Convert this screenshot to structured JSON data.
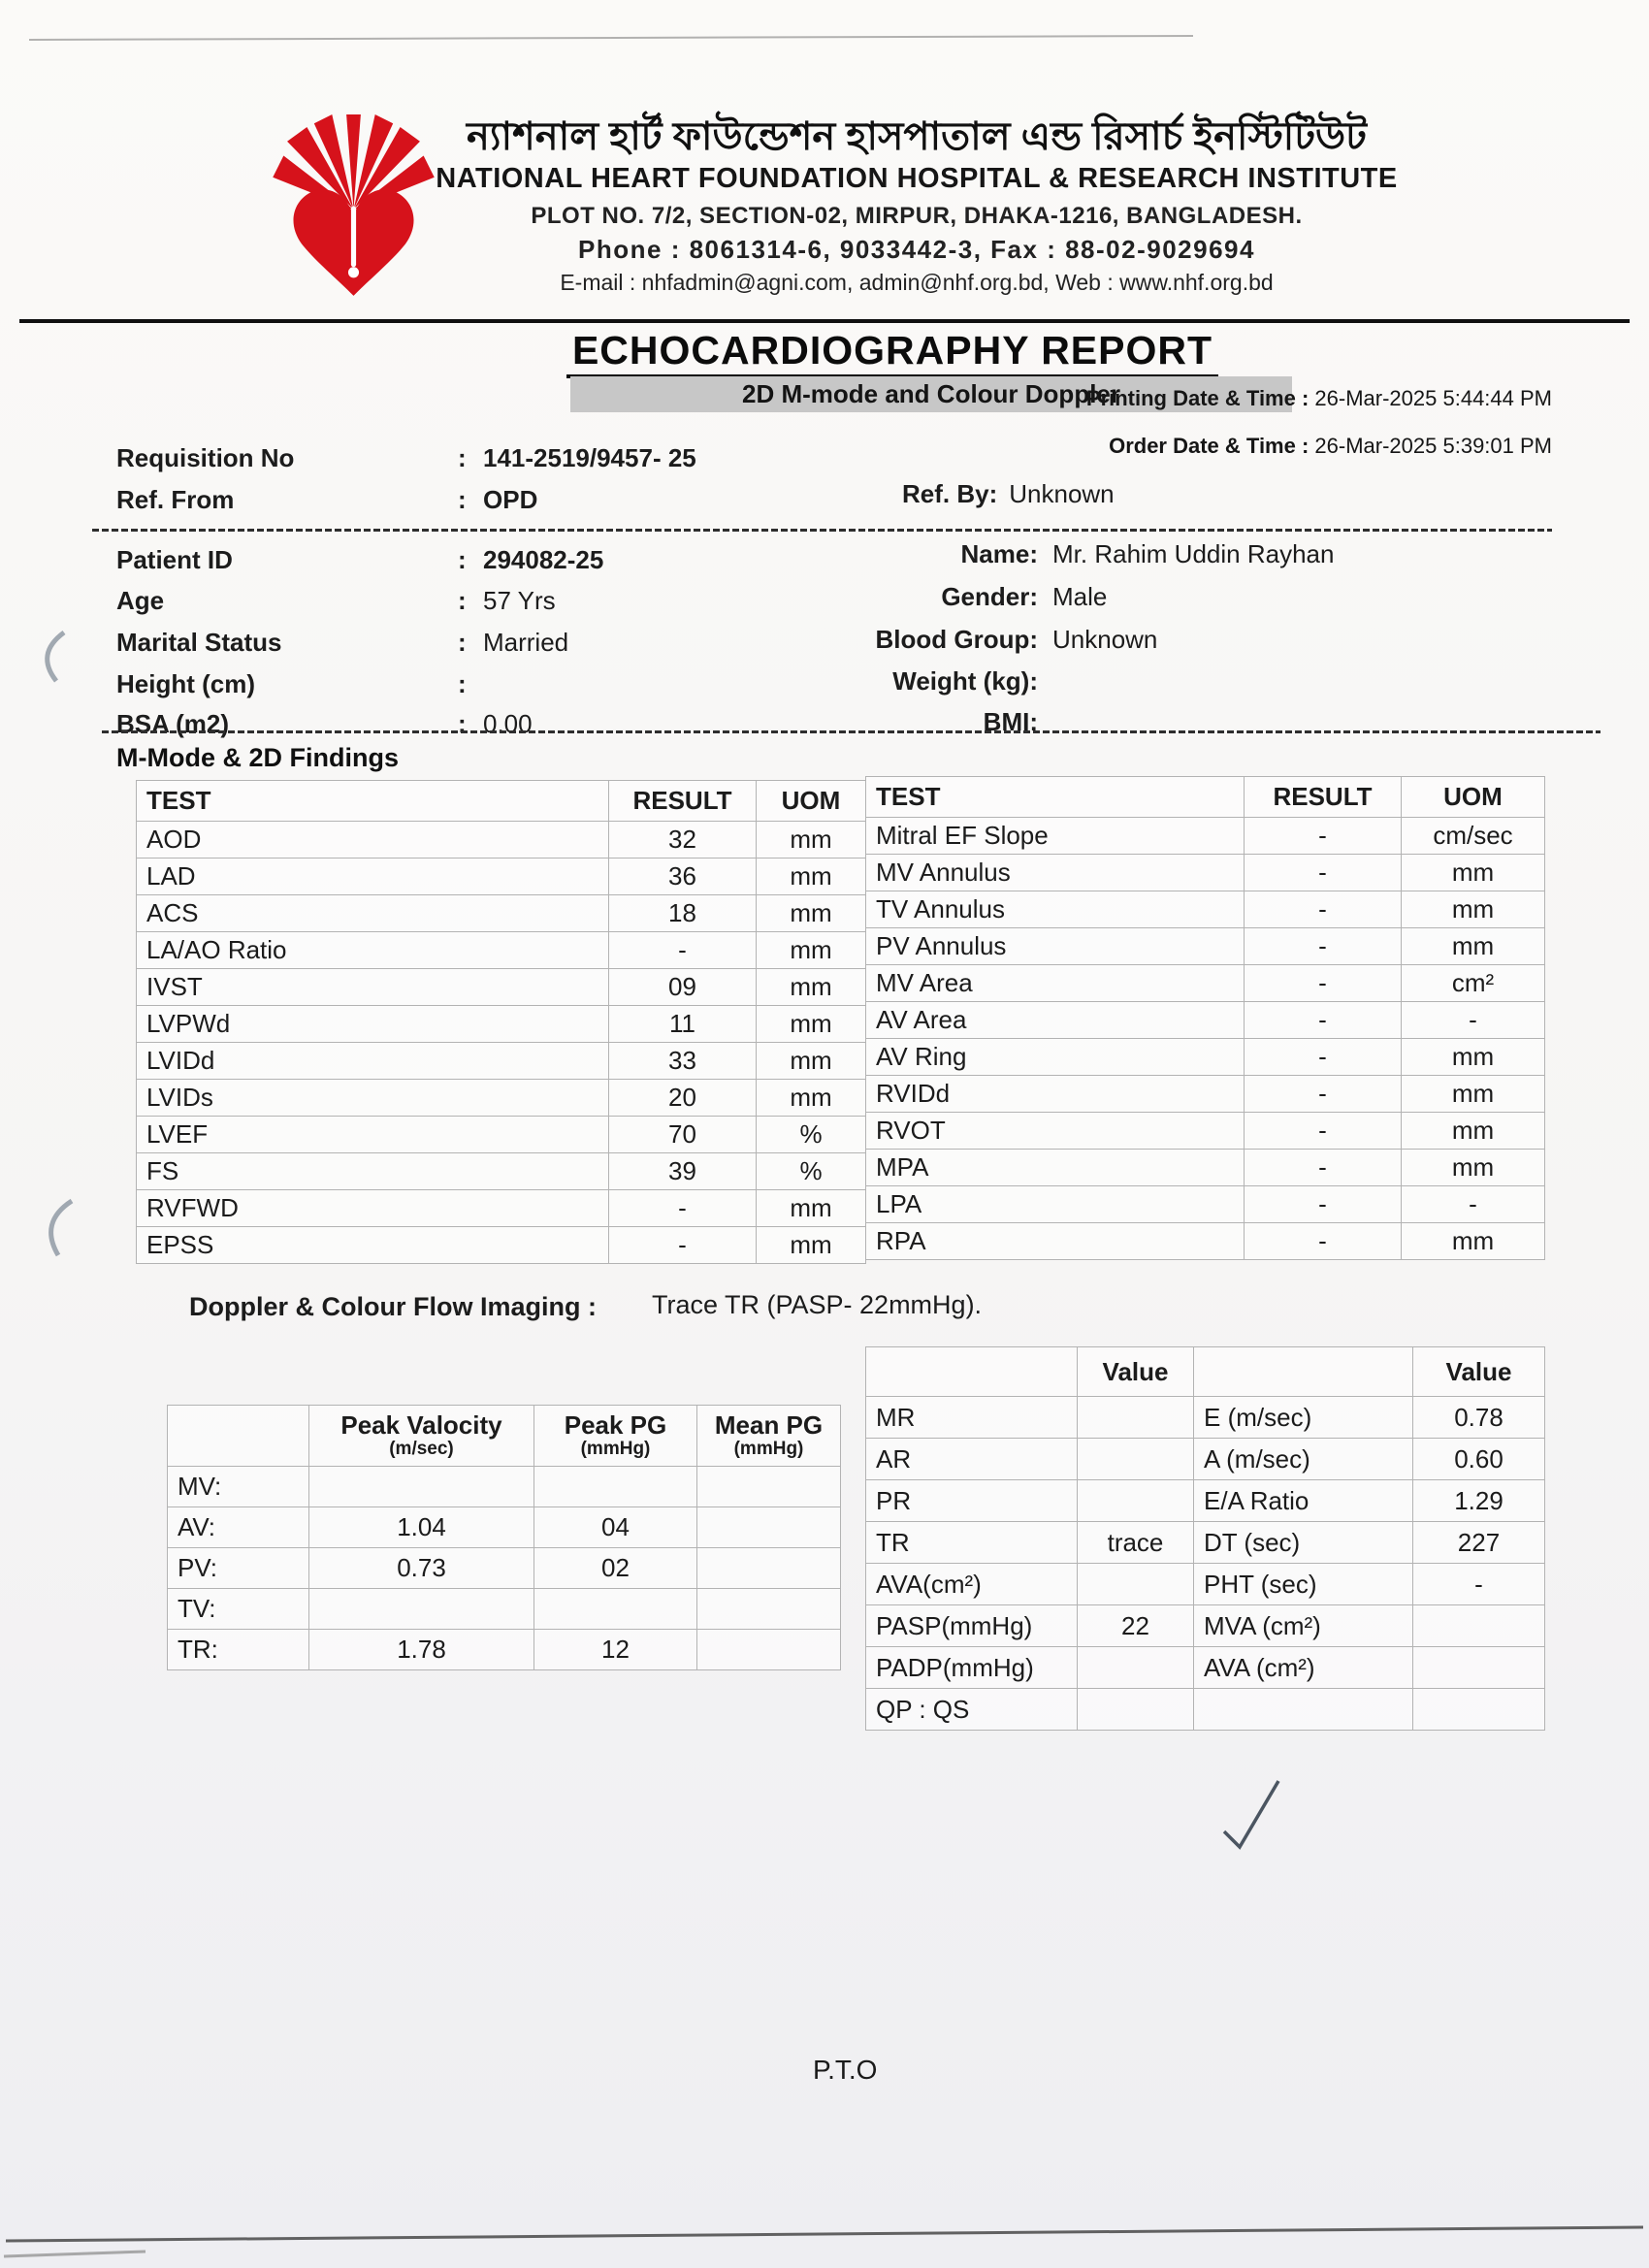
{
  "header": {
    "name_bn": "ন্যাশনাল হার্ট ফাউন্ডেশন হাসপাতাল এন্ড রিসার্চ ইনস্টিটিউট",
    "name_en": "NATIONAL HEART FOUNDATION HOSPITAL & RESEARCH INSTITUTE",
    "address": "PLOT NO. 7/2, SECTION-02, MIRPUR, DHAKA-1216, BANGLADESH.",
    "phone_line": "Phone : 8061314-6, 9033442-3, Fax : 88-02-9029694",
    "email_line": "E-mail : nhfadmin@agni.com, admin@nhf.org.bd, Web : www.nhf.org.bd",
    "logo_color": "#d6121b"
  },
  "report": {
    "title": "ECHOCARDIOGRAPHY REPORT",
    "subtitle": "2D M-mode and Colour Doppler"
  },
  "meta": {
    "colon": ":",
    "printing": {
      "label": "Printing Date & Time :",
      "value": "26-Mar-2025 5:44:44 PM"
    },
    "order": {
      "label": "Order Date & Time :",
      "value": "26-Mar-2025 5:39:01 PM"
    },
    "requisition_no": {
      "label": "Requisition No",
      "value": "141-2519/9457- 25"
    },
    "ref_from": {
      "label": "Ref. From",
      "value": "OPD"
    },
    "ref_by": {
      "label": "Ref. By:",
      "value": "Unknown"
    }
  },
  "patient": {
    "left": [
      {
        "label": "Patient ID",
        "value": "294082-25"
      },
      {
        "label": "Age",
        "value": "57 Yrs"
      },
      {
        "label": "Marital Status",
        "value": "Married"
      },
      {
        "label": "Height (cm)",
        "value": ""
      },
      {
        "label": "BSA (m2)",
        "value": "0.00"
      }
    ],
    "right": [
      {
        "label": "Name:",
        "value": "Mr. Rahim Uddin Rayhan"
      },
      {
        "label": "Gender:",
        "value": "Male"
      },
      {
        "label": "Blood Group:",
        "value": "Unknown"
      },
      {
        "label": "Weight (kg):",
        "value": ""
      },
      {
        "label": "BMI:",
        "value": ""
      }
    ]
  },
  "findings": {
    "section_title": "M-Mode & 2D Findings",
    "columns": [
      "TEST",
      "RESULT",
      "UOM"
    ],
    "left_rows": [
      [
        "AOD",
        "32",
        "mm"
      ],
      [
        "LAD",
        "36",
        "mm"
      ],
      [
        "ACS",
        "18",
        "mm"
      ],
      [
        "LA/AO Ratio",
        "-",
        "mm"
      ],
      [
        "IVST",
        "09",
        "mm"
      ],
      [
        "LVPWd",
        "11",
        "mm"
      ],
      [
        "LVIDd",
        "33",
        "mm"
      ],
      [
        "LVIDs",
        "20",
        "mm"
      ],
      [
        "LVEF",
        "70",
        "%"
      ],
      [
        "FS",
        "39",
        "%"
      ],
      [
        "RVFWD",
        "-",
        "mm"
      ],
      [
        "EPSS",
        "-",
        "mm"
      ]
    ],
    "right_rows": [
      [
        "Mitral EF Slope",
        "-",
        "cm/sec"
      ],
      [
        "MV Annulus",
        "-",
        "mm"
      ],
      [
        "TV Annulus",
        "-",
        "mm"
      ],
      [
        "PV Annulus",
        "-",
        "mm"
      ],
      [
        "MV Area",
        "-",
        "cm²"
      ],
      [
        "AV Area",
        "-",
        "-"
      ],
      [
        "AV Ring",
        "-",
        "mm"
      ],
      [
        "RVIDd",
        "-",
        "mm"
      ],
      [
        "RVOT",
        "-",
        "mm"
      ],
      [
        "MPA",
        "-",
        "mm"
      ],
      [
        "LPA",
        "-",
        "-"
      ],
      [
        "RPA",
        "-",
        "mm"
      ]
    ]
  },
  "doppler": {
    "section_label": "Doppler & Colour Flow Imaging :",
    "section_value": "Trace TR (PASP- 22mmHg).",
    "velocity_table": {
      "headers": [
        "",
        "Peak Valocity",
        "Peak PG",
        "Mean PG"
      ],
      "subheaders": [
        "",
        "(m/sec)",
        "(mmHg)",
        "(mmHg)"
      ],
      "rows": [
        [
          "MV:",
          "",
          "",
          ""
        ],
        [
          "AV:",
          "1.04",
          "04",
          ""
        ],
        [
          "PV:",
          "0.73",
          "02",
          ""
        ],
        [
          "TV:",
          "",
          "",
          ""
        ],
        [
          "TR:",
          "1.78",
          "12",
          ""
        ]
      ]
    },
    "value_table": {
      "header": "Value",
      "rows": [
        [
          "MR",
          "",
          "E (m/sec)",
          "0.78"
        ],
        [
          "AR",
          "",
          "A (m/sec)",
          "0.60"
        ],
        [
          "PR",
          "",
          "E/A Ratio",
          "1.29"
        ],
        [
          "TR",
          "trace",
          "DT (sec)",
          "227"
        ],
        [
          "AVA(cm²)",
          "",
          "PHT (sec)",
          "-"
        ],
        [
          "PASP(mmHg)",
          "22",
          "MVA (cm²)",
          ""
        ],
        [
          "PADP(mmHg)",
          "",
          "AVA (cm²)",
          ""
        ],
        [
          "QP : QS",
          "",
          "",
          ""
        ]
      ]
    }
  },
  "footer": {
    "pto": "P.T.O"
  }
}
